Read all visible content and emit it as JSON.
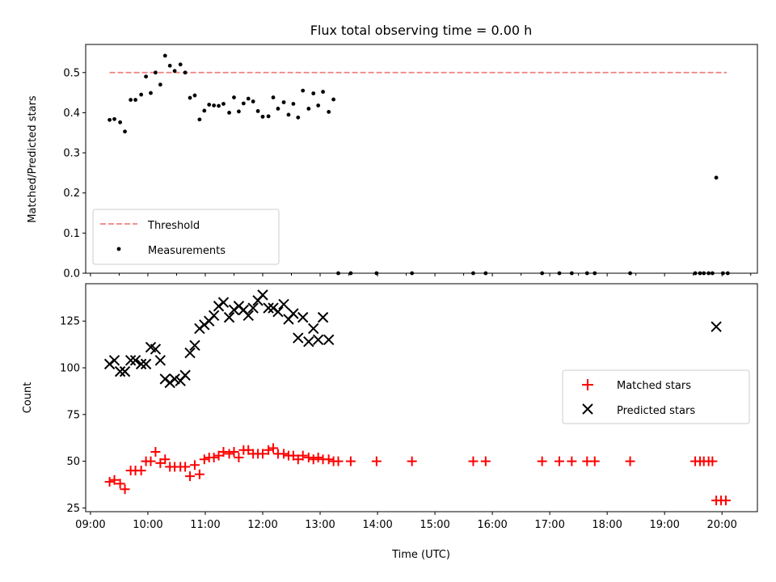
{
  "chart_data": [
    {
      "type": "scatter",
      "title": "Flux total observing time = 0.00 h",
      "xlabel": "",
      "ylabel": "Matched/Predicted stars",
      "ylim": [
        0.0,
        0.57
      ],
      "xlim": [
        "08:55",
        "20:37"
      ],
      "yticks": [
        "0.0",
        "0.1",
        "0.2",
        "0.3",
        "0.4",
        "0.5"
      ],
      "grid": false,
      "legend_position": "lower-left",
      "legend": [
        {
          "label": "Threshold",
          "marker": "dashed-line",
          "color": "#f08080"
        },
        {
          "label": "Measurements",
          "marker": "dot",
          "color": "#000000"
        }
      ],
      "series": [
        {
          "name": "Threshold",
          "style": "dashed-line",
          "color": "#f08080",
          "x": [
            "09:20",
            "20:05"
          ],
          "y": [
            0.5,
            0.5
          ]
        },
        {
          "name": "Measurements",
          "style": "dot",
          "color": "#000000",
          "x": [
            "09:20",
            "09:25",
            "09:31",
            "09:36",
            "09:42",
            "09:47",
            "09:53",
            "09:58",
            "10:03",
            "10:08",
            "10:13",
            "10:18",
            "10:23",
            "10:28",
            "10:34",
            "10:39",
            "10:44",
            "10:49",
            "10:54",
            "10:59",
            "11:04",
            "11:09",
            "11:14",
            "11:19",
            "11:25",
            "11:30",
            "11:35",
            "11:40",
            "11:45",
            "11:50",
            "11:55",
            "12:00",
            "12:06",
            "12:11",
            "12:16",
            "12:22",
            "12:27",
            "12:32",
            "12:37",
            "12:42",
            "12:48",
            "12:53",
            "12:58",
            "13:03",
            "13:09",
            "13:14",
            "13:19",
            "13:32",
            "13:59",
            "14:36",
            "15:40",
            "15:53",
            "16:52",
            "17:10",
            "17:23",
            "17:39",
            "17:47",
            "18:24",
            "19:32",
            "19:37",
            "19:41",
            "19:46",
            "19:50",
            "19:54",
            "20:01",
            "20:06"
          ],
          "y": [
            0.382,
            0.384,
            0.376,
            0.353,
            0.432,
            0.432,
            0.445,
            0.49,
            0.449,
            0.5,
            0.47,
            0.542,
            0.517,
            0.504,
            0.52,
            0.5,
            0.437,
            0.443,
            0.383,
            0.405,
            0.42,
            0.418,
            0.417,
            0.422,
            0.4,
            0.438,
            0.403,
            0.423,
            0.435,
            0.428,
            0.404,
            0.39,
            0.391,
            0.438,
            0.41,
            0.426,
            0.395,
            0.422,
            0.388,
            0.455,
            0.41,
            0.448,
            0.418,
            0.452,
            0.402,
            0.433,
            0.0,
            0.0,
            0.0,
            0.0,
            0.0,
            0.0,
            0.0,
            0.0,
            0.0,
            0.0,
            0.0,
            0.0,
            0.0,
            0.0,
            0.0,
            0.0,
            0.0,
            0.238,
            0.0,
            0.0
          ]
        }
      ]
    },
    {
      "type": "scatter",
      "title": "",
      "xlabel": "Time (UTC)",
      "ylabel": "Count",
      "ylim": [
        23,
        145
      ],
      "xlim": [
        "08:55",
        "20:37"
      ],
      "yticks": [
        "25",
        "50",
        "75",
        "100",
        "125"
      ],
      "xticks": [
        "09:00",
        "10:00",
        "11:00",
        "12:00",
        "13:00",
        "14:00",
        "15:00",
        "16:00",
        "17:00",
        "18:00",
        "19:00",
        "20:00"
      ],
      "grid": false,
      "legend_position": "right",
      "legend": [
        {
          "label": "Matched stars",
          "marker": "plus",
          "color": "#ff0000"
        },
        {
          "label": "Predicted stars",
          "marker": "x",
          "color": "#000000"
        }
      ],
      "series": [
        {
          "name": "Matched stars",
          "style": "plus",
          "color": "#ff0000",
          "x": [
            "09:20",
            "09:25",
            "09:31",
            "09:36",
            "09:42",
            "09:47",
            "09:53",
            "09:58",
            "10:03",
            "10:08",
            "10:13",
            "10:18",
            "10:23",
            "10:28",
            "10:34",
            "10:39",
            "10:44",
            "10:49",
            "10:54",
            "10:59",
            "11:04",
            "11:09",
            "11:14",
            "11:19",
            "11:25",
            "11:30",
            "11:35",
            "11:40",
            "11:45",
            "11:50",
            "11:55",
            "12:00",
            "12:06",
            "12:11",
            "12:16",
            "12:22",
            "12:27",
            "12:32",
            "12:37",
            "12:42",
            "12:48",
            "12:53",
            "12:58",
            "13:03",
            "13:09",
            "13:14",
            "13:19",
            "13:32",
            "13:59",
            "14:36",
            "15:40",
            "15:53",
            "16:52",
            "17:10",
            "17:23",
            "17:39",
            "17:47",
            "18:24",
            "19:32",
            "19:37",
            "19:41",
            "19:46",
            "19:50",
            "19:54",
            "19:59",
            "20:04"
          ],
          "y": [
            39,
            40,
            38,
            35,
            45,
            45,
            45,
            50,
            50,
            55,
            49,
            51,
            47,
            47,
            47,
            47,
            42,
            48,
            43,
            51,
            52,
            52,
            53,
            55,
            54,
            55,
            52,
            56,
            56,
            54,
            54,
            54,
            56,
            57,
            54,
            54,
            53,
            53,
            51,
            53,
            52,
            51,
            52,
            51,
            51,
            50,
            50,
            50,
            50,
            50,
            50,
            50,
            50,
            50,
            50,
            50,
            50,
            50,
            50,
            50,
            50,
            50,
            50,
            29,
            29,
            29
          ]
        },
        {
          "name": "Predicted stars",
          "style": "x",
          "color": "#000000",
          "x": [
            "09:20",
            "09:25",
            "09:31",
            "09:36",
            "09:42",
            "09:47",
            "09:53",
            "09:58",
            "10:03",
            "10:08",
            "10:13",
            "10:18",
            "10:23",
            "10:28",
            "10:34",
            "10:39",
            "10:44",
            "10:49",
            "10:54",
            "10:59",
            "11:04",
            "11:09",
            "11:14",
            "11:19",
            "11:25",
            "11:30",
            "11:35",
            "11:40",
            "11:45",
            "11:50",
            "11:55",
            "12:00",
            "12:06",
            "12:11",
            "12:16",
            "12:22",
            "12:27",
            "12:32",
            "12:37",
            "12:42",
            "12:48",
            "12:53",
            "12:58",
            "13:03",
            "13:09",
            "19:54"
          ],
          "y": [
            102,
            104,
            98,
            98,
            104,
            104,
            102,
            102,
            111,
            110,
            104,
            94,
            92,
            94,
            93,
            96,
            108,
            112,
            121,
            123,
            125,
            128,
            133,
            135,
            127,
            131,
            133,
            131,
            128,
            132,
            136,
            139,
            132,
            132,
            130,
            134,
            126,
            129,
            116,
            127,
            114,
            121,
            115,
            127,
            115,
            122
          ]
        }
      ]
    }
  ]
}
